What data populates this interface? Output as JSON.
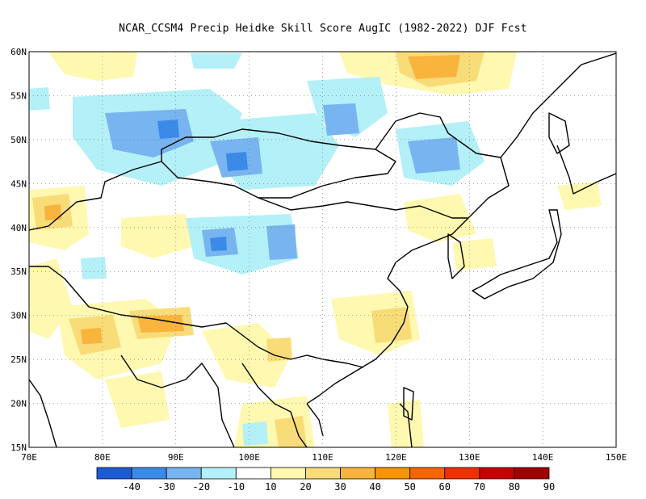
{
  "title": "NCAR_CCSM4 Precip Heidke Skill Score AugIC (1982-2022) DJF Fcst",
  "map": {
    "lon_range": [
      70,
      150
    ],
    "lat_range": [
      15,
      60
    ],
    "lat_ticks": [
      "15N",
      "20N",
      "25N",
      "30N",
      "35N",
      "40N",
      "45N",
      "50N",
      "55N",
      "60N"
    ],
    "lon_ticks": [
      "70E",
      "80E",
      "90E",
      "100E",
      "110E",
      "120E",
      "130E",
      "140E",
      "150E"
    ]
  },
  "colorbar": {
    "colors": [
      "#1c5ad6",
      "#3c8ae8",
      "#78b4f0",
      "#b4f0f8",
      "#ffffff",
      "#fff8b0",
      "#f8dc78",
      "#f8b43c",
      "#f89400",
      "#f86400",
      "#f03000",
      "#c80000",
      "#a00000"
    ],
    "labels": [
      "-40",
      "-30",
      "-20",
      "-10",
      "10",
      "20",
      "30",
      "40",
      "50",
      "60",
      "70",
      "80",
      "90"
    ]
  },
  "colors": {
    "coast": "#000000",
    "grid": "#7a7a7a"
  }
}
